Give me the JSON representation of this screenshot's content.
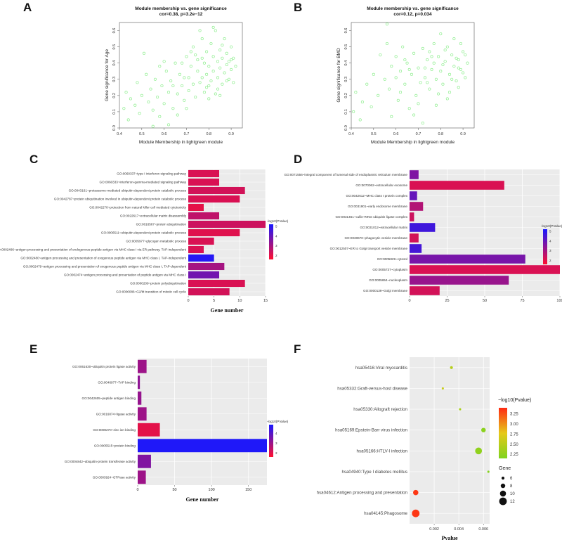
{
  "panel_letters": {
    "A": "A",
    "B": "B",
    "C": "C",
    "D": "D",
    "E": "E",
    "F": "F"
  },
  "chart_data": [
    {
      "panel": "A",
      "type": "scatter",
      "title": "Module membership vs. gene significance",
      "subtitle": "cor=0.38, p=3.2e−12",
      "xlabel": "Module Membership in lightgreen module",
      "ylabel": "Gene significance for  Age",
      "xlim": [
        0.4,
        0.95
      ],
      "ylim": [
        0.0,
        0.65
      ],
      "xticks": [
        "0.4",
        "0.5",
        "0.6",
        "0.7",
        "0.8",
        "0.9"
      ],
      "yticks": [
        "0.0",
        "0.1",
        "0.2",
        "0.3",
        "0.4",
        "0.5",
        "0.6"
      ],
      "point_color": "#90EE90",
      "points": [
        [
          0.42,
          0.12
        ],
        [
          0.43,
          0.22
        ],
        [
          0.44,
          0.05
        ],
        [
          0.45,
          0.18
        ],
        [
          0.47,
          0.14
        ],
        [
          0.48,
          0.28
        ],
        [
          0.49,
          0.09
        ],
        [
          0.5,
          0.2
        ],
        [
          0.51,
          0.46
        ],
        [
          0.52,
          0.33
        ],
        [
          0.53,
          0.16
        ],
        [
          0.54,
          0.24
        ],
        [
          0.55,
          0.11
        ],
        [
          0.56,
          0.3
        ],
        [
          0.57,
          0.19
        ],
        [
          0.58,
          0.07
        ],
        [
          0.59,
          0.26
        ],
        [
          0.6,
          0.15
        ],
        [
          0.61,
          0.35
        ],
        [
          0.62,
          0.22
        ],
        [
          0.63,
          0.29
        ],
        [
          0.64,
          0.12
        ],
        [
          0.65,
          0.4
        ],
        [
          0.66,
          0.21
        ],
        [
          0.67,
          0.33
        ],
        [
          0.68,
          0.26
        ],
        [
          0.69,
          0.17
        ],
        [
          0.7,
          0.44
        ],
        [
          0.71,
          0.31
        ],
        [
          0.71,
          0.23
        ],
        [
          0.72,
          0.38
        ],
        [
          0.73,
          0.27
        ],
        [
          0.73,
          0.5
        ],
        [
          0.74,
          0.19
        ],
        [
          0.75,
          0.35
        ],
        [
          0.75,
          0.42
        ],
        [
          0.76,
          0.28
        ],
        [
          0.77,
          0.55
        ],
        [
          0.77,
          0.31
        ],
        [
          0.78,
          0.22
        ],
        [
          0.78,
          0.4
        ],
        [
          0.79,
          0.47
        ],
        [
          0.79,
          0.33
        ],
        [
          0.8,
          0.26
        ],
        [
          0.8,
          0.38
        ],
        [
          0.81,
          0.52
        ],
        [
          0.81,
          0.29
        ],
        [
          0.82,
          0.44
        ],
        [
          0.82,
          0.35
        ],
        [
          0.83,
          0.21
        ],
        [
          0.83,
          0.6
        ],
        [
          0.84,
          0.41
        ],
        [
          0.84,
          0.31
        ],
        [
          0.85,
          0.48
        ],
        [
          0.85,
          0.37
        ],
        [
          0.86,
          0.27
        ],
        [
          0.86,
          0.43
        ],
        [
          0.87,
          0.55
        ],
        [
          0.87,
          0.34
        ],
        [
          0.88,
          0.39
        ],
        [
          0.88,
          0.46
        ],
        [
          0.89,
          0.3
        ],
        [
          0.89,
          0.41
        ],
        [
          0.9,
          0.36
        ],
        [
          0.9,
          0.5
        ],
        [
          0.91,
          0.28
        ],
        [
          0.91,
          0.43
        ],
        [
          0.92,
          0.38
        ],
        [
          0.76,
          0.6
        ],
        [
          0.74,
          0.45
        ],
        [
          0.7,
          0.12
        ],
        [
          0.68,
          0.4
        ],
        [
          0.66,
          0.08
        ],
        [
          0.62,
          0.02
        ],
        [
          0.58,
          0.38
        ],
        [
          0.55,
          0.01
        ],
        [
          0.8,
          0.18
        ],
        [
          0.84,
          0.24
        ],
        [
          0.86,
          0.51
        ],
        [
          0.88,
          0.29
        ],
        [
          0.82,
          0.62
        ],
        [
          0.79,
          0.25
        ],
        [
          0.77,
          0.43
        ],
        [
          0.85,
          0.2
        ],
        [
          0.9,
          0.42
        ],
        [
          0.72,
          0.47
        ],
        [
          0.69,
          0.31
        ],
        [
          0.64,
          0.26
        ],
        [
          0.6,
          0.41
        ]
      ]
    },
    {
      "panel": "B",
      "type": "scatter",
      "title": "Module membership vs. gene significance",
      "subtitle": "cor=0.12, p=0.034",
      "xlabel": "Module Membership in lightgreen module",
      "ylabel": "Gene significance for  BMD",
      "xlim": [
        0.4,
        0.95
      ],
      "ylim": [
        0.0,
        0.65
      ],
      "xticks": [
        "0.4",
        "0.5",
        "0.6",
        "0.7",
        "0.8",
        "0.9"
      ],
      "yticks": [
        "0.0",
        "0.1",
        "0.2",
        "0.3",
        "0.4",
        "0.5",
        "0.6"
      ],
      "point_color": "#90EE90",
      "points": [
        [
          0.41,
          0.1
        ],
        [
          0.42,
          0.22
        ],
        [
          0.44,
          0.05
        ],
        [
          0.45,
          0.16
        ],
        [
          0.47,
          0.27
        ],
        [
          0.49,
          0.13
        ],
        [
          0.5,
          0.33
        ],
        [
          0.52,
          0.2
        ],
        [
          0.53,
          0.45
        ],
        [
          0.55,
          0.3
        ],
        [
          0.56,
          0.52
        ],
        [
          0.57,
          0.24
        ],
        [
          0.58,
          0.38
        ],
        [
          0.6,
          0.44
        ],
        [
          0.61,
          0.17
        ],
        [
          0.62,
          0.35
        ],
        [
          0.63,
          0.5
        ],
        [
          0.64,
          0.27
        ],
        [
          0.65,
          0.4
        ],
        [
          0.66,
          0.12
        ],
        [
          0.67,
          0.33
        ],
        [
          0.68,
          0.46
        ],
        [
          0.69,
          0.2
        ],
        [
          0.7,
          0.37
        ],
        [
          0.71,
          0.28
        ],
        [
          0.72,
          0.49
        ],
        [
          0.73,
          0.31
        ],
        [
          0.74,
          0.42
        ],
        [
          0.75,
          0.24
        ],
        [
          0.76,
          0.36
        ],
        [
          0.77,
          0.52
        ],
        [
          0.78,
          0.3
        ],
        [
          0.79,
          0.44
        ],
        [
          0.8,
          0.35
        ],
        [
          0.81,
          0.27
        ],
        [
          0.82,
          0.41
        ],
        [
          0.83,
          0.5
        ],
        [
          0.84,
          0.33
        ],
        [
          0.85,
          0.45
        ],
        [
          0.86,
          0.38
        ],
        [
          0.87,
          0.29
        ],
        [
          0.88,
          0.42
        ],
        [
          0.89,
          0.36
        ],
        [
          0.9,
          0.47
        ],
        [
          0.91,
          0.31
        ],
        [
          0.92,
          0.4
        ],
        [
          0.78,
          0.14
        ],
        [
          0.8,
          0.58
        ],
        [
          0.83,
          0.18
        ],
        [
          0.86,
          0.55
        ],
        [
          0.88,
          0.25
        ],
        [
          0.72,
          0.03
        ],
        [
          0.68,
          0.08
        ],
        [
          0.64,
          0.42
        ],
        [
          0.6,
          0.31
        ],
        [
          0.56,
          0.64
        ],
        [
          0.58,
          0.07
        ],
        [
          0.75,
          0.47
        ],
        [
          0.81,
          0.39
        ],
        [
          0.84,
          0.22
        ],
        [
          0.87,
          0.43
        ],
        [
          0.89,
          0.52
        ],
        [
          0.9,
          0.34
        ],
        [
          0.79,
          0.21
        ],
        [
          0.76,
          0.44
        ],
        [
          0.73,
          0.37
        ],
        [
          0.7,
          0.15
        ],
        [
          0.66,
          0.36
        ],
        [
          0.62,
          0.22
        ],
        [
          0.85,
          0.3
        ],
        [
          0.82,
          0.48
        ],
        [
          0.88,
          0.37
        ],
        [
          0.74,
          0.28
        ],
        [
          0.77,
          0.4
        ],
        [
          0.91,
          0.45
        ]
      ]
    },
    {
      "panel": "C",
      "type": "bar",
      "orientation": "horizontal",
      "xlabel": "Gene number",
      "xlim": [
        0,
        15
      ],
      "xticks": [
        "0",
        "5",
        "10",
        "15"
      ],
      "legend_title": "-log10(PValue)",
      "legend_ticks": [
        "5",
        "4",
        "3",
        "2"
      ],
      "legend_range": [
        1.6,
        5.2
      ],
      "categories": [
        "GO:0060337~type I interferon signaling pathway",
        "GO:0060333~interferon-gamma-mediated signaling pathway",
        "GO:0043161~proteasome-mediated ubiquitin-dependent protein catabolic process",
        "GO:0042787~protein ubiquitination involved in ubiquitin-dependent protein catabolic process",
        "GO:0042270~protection from natural killer cell mediated cytotoxicity",
        "GO:0022617~extracellular matrix disassembly",
        "GO:0016567~protein ubiquitination",
        "GO:0006511~ubiquitin-dependent protein catabolic process",
        "GO:0005977~glycogen metabolic process",
        "GO:0002486~antigen processing and presentation of endogenous peptide antigen via MHC class I via ER pathway, TAP-independent",
        "GO:0002480~antigen processing and presentation of exogenous peptide antigen via MHC class I, TAP-independent",
        "GO:0002479~antigen processing and presentation of exogenous peptide antigen via MHC class I, TAP-dependent",
        "GO:0002474~antigen processing and presentation of peptide antigen via MHC class I",
        "GO:0000209~protein polyubiquitination",
        "GO:0000086~G2/M transition of mitotic cell cycle"
      ],
      "values": [
        6,
        6,
        11,
        10,
        3,
        6,
        15,
        10,
        5,
        3,
        5,
        7,
        6,
        11,
        8
      ],
      "neglog10p": [
        2.2,
        2.2,
        2.3,
        2.2,
        2.0,
        2.6,
        2.4,
        2.1,
        2.2,
        2.2,
        5.0,
        3.0,
        3.8,
        2.2,
        2.3
      ]
    },
    {
      "panel": "D",
      "type": "bar",
      "orientation": "horizontal",
      "xlabel": "",
      "xlim": [
        0,
        100
      ],
      "xticks": [
        "0",
        "25",
        "50",
        "75",
        "100"
      ],
      "legend_title": "-log10(PValue)",
      "legend_ticks": [
        "5",
        "4",
        "3",
        "2"
      ],
      "legend_range": [
        1.6,
        5.2
      ],
      "categories": [
        "GO:0071556~integral component of lumenal side of endoplasmic reticulum membrane",
        "GO:0070062~extracellular exosome",
        "GO:0042612~MHC class I protein complex",
        "GO:0031901~early endosome membrane",
        "GO:0031461~cullin-RING ubiquitin ligase complex",
        "GO:0031012~extracellular matrix",
        "GO:0030670~phagocytic vesicle membrane",
        "GO:0012507~ER to Golgi transport vesicle membrane",
        "GO:0005829~cytosol",
        "GO:0005737~cytoplasm",
        "GO:0005654~nucleoplasm",
        "GO:0000139~Golgi membrane"
      ],
      "values": [
        6,
        63,
        5,
        9,
        3,
        17,
        6,
        8,
        77,
        101,
        66,
        20
      ],
      "neglog10p": [
        3.6,
        2.2,
        4.0,
        2.8,
        2.4,
        4.6,
        2.3,
        4.5,
        3.7,
        2.2,
        3.2,
        2.3
      ]
    },
    {
      "panel": "E",
      "type": "bar",
      "orientation": "horizontal",
      "xlabel": "Gene number",
      "xlim": [
        0,
        175
      ],
      "xticks": [
        "0",
        "50",
        "100",
        "150"
      ],
      "legend_title": "-log10(PValue)",
      "legend_ticks": [
        "4",
        "3",
        "2"
      ],
      "legend_range": [
        1.6,
        4.9
      ],
      "categories": [
        "GO:0061630~ubiquitin protein ligase activity",
        "GO:0046977~TAP binding",
        "GO:0042605~peptide antigen binding",
        "GO:0016874~ligase activity",
        "GO:0008270~zinc ion binding",
        "GO:0005515~protein binding",
        "GO:0004842~ubiquitin-protein transferase activity",
        "GO:0003924~GTPase activity"
      ],
      "values": [
        12,
        3,
        5,
        12,
        30,
        175,
        18,
        11
      ],
      "neglog10p": [
        3.0,
        3.2,
        3.1,
        3.0,
        2.0,
        4.8,
        3.4,
        3.0
      ]
    },
    {
      "panel": "F",
      "type": "scatter",
      "subtype": "bubble",
      "xlabel": "Pvalue",
      "xlim": [
        0.0,
        0.0065
      ],
      "xticks": [
        "0.002",
        "0.004",
        "0.006"
      ],
      "xtick_values": [
        0.002,
        0.004,
        0.006
      ],
      "categories": [
        "hsa05416:Viral myocarditis",
        "hsa05332:Graft-versus-host disease",
        "hsa05330:Allograft rejection",
        "hsa05169:Epstein-Barr virus infection",
        "hsa05166:HTLV-I infection",
        "hsa04940:Type I diabetes mellitus",
        "hsa04612:Antigen processing and presentation",
        "hsa04145:Phagosome"
      ],
      "pvalue": [
        0.0034,
        0.0027,
        0.0041,
        0.006,
        0.0056,
        0.0064,
        0.0005,
        0.0005
      ],
      "gene_count": [
        6,
        5,
        5,
        8,
        11,
        5,
        9,
        12
      ],
      "neglog10p": [
        2.47,
        2.57,
        2.39,
        2.22,
        2.25,
        2.19,
        3.3,
        3.3
      ],
      "legend_color_title": "−log10(Pvalue)",
      "legend_color_ticks": [
        "3.25",
        "3.00",
        "2.75",
        "2.50",
        "2.25"
      ],
      "legend_size_title": "Gene",
      "legend_size_ticks": [
        "6",
        "8",
        "10",
        "12"
      ]
    }
  ]
}
